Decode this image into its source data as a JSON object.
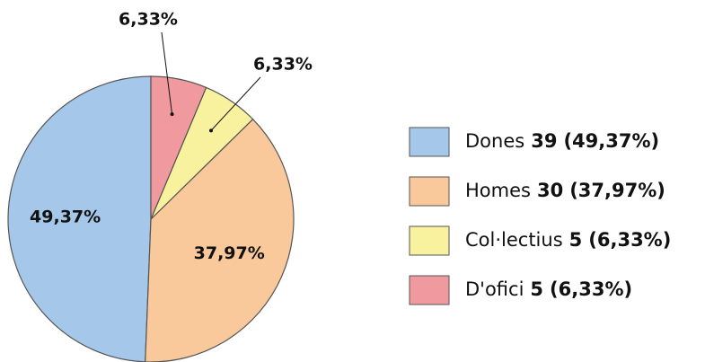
{
  "chart_data": {
    "type": "pie",
    "categories": [
      "Dones",
      "Homes",
      "Col·lectius",
      "D'ofici"
    ],
    "values": [
      49.37,
      37.97,
      6.33,
      6.33
    ],
    "value_labels": [
      "49,37%",
      "37,97%",
      "6,33%",
      "6,33%"
    ],
    "counts": [
      39,
      30,
      5,
      5
    ],
    "legend_percents": [
      "(49,37%)",
      "(37,97%)",
      "(6,33%)",
      "(6,33%)"
    ],
    "colors": [
      "#a5c7e9",
      "#f9c89b",
      "#f8f19d",
      "#f09a9f"
    ],
    "legend": "right"
  }
}
